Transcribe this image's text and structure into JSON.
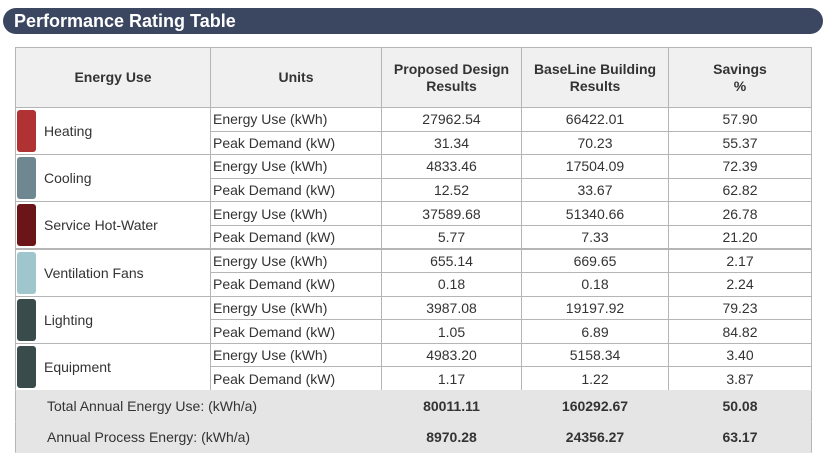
{
  "title": "Performance Rating Table",
  "table": {
    "header": [
      "Energy Use",
      "Units",
      "Proposed Design\nResults",
      "BaseLine Building\nResults",
      "Savings\n%"
    ],
    "groups": [
      {
        "name": "Heating",
        "color": "#b03232",
        "rows": [
          {
            "units": "Energy Use (kWh)",
            "proposed": "27962.54",
            "baseline": "66422.01",
            "savings": "57.90"
          },
          {
            "units": "Peak Demand (kW)",
            "proposed": "31.34",
            "baseline": "70.23",
            "savings": "55.37"
          }
        ]
      },
      {
        "name": "Cooling",
        "color": "#6e8790",
        "rows": [
          {
            "units": "Energy Use (kWh)",
            "proposed": "4833.46",
            "baseline": "17504.09",
            "savings": "72.39"
          },
          {
            "units": "Peak Demand (kW)",
            "proposed": "12.52",
            "baseline": "33.67",
            "savings": "62.82"
          }
        ]
      },
      {
        "name": "Service Hot-Water",
        "color": "#6b1519",
        "rows": [
          {
            "units": "Energy Use (kWh)",
            "proposed": "37589.68",
            "baseline": "51340.66",
            "savings": "26.78"
          },
          {
            "units": "Peak Demand (kW)",
            "proposed": "5.77",
            "baseline": "7.33",
            "savings": "21.20"
          }
        ]
      },
      {
        "name": "Ventilation Fans",
        "color": "#a0c6cd",
        "rows": [
          {
            "units": "Energy Use (kWh)",
            "proposed": "655.14",
            "baseline": "669.65",
            "savings": "2.17"
          },
          {
            "units": "Peak Demand (kW)",
            "proposed": "0.18",
            "baseline": "0.18",
            "savings": "2.24"
          }
        ]
      },
      {
        "name": "Lighting",
        "color": "#394b4b",
        "rows": [
          {
            "units": "Energy Use (kWh)",
            "proposed": "3987.08",
            "baseline": "19197.92",
            "savings": "79.23"
          },
          {
            "units": "Peak Demand (kW)",
            "proposed": "1.05",
            "baseline": "6.89",
            "savings": "84.82"
          }
        ]
      },
      {
        "name": "Equipment",
        "color": "#394b4b",
        "rows": [
          {
            "units": "Energy Use (kWh)",
            "proposed": "4983.20",
            "baseline": "5158.34",
            "savings": "3.40"
          },
          {
            "units": "Peak Demand (kW)",
            "proposed": "1.17",
            "baseline": "1.22",
            "savings": "3.87"
          }
        ]
      }
    ],
    "footer": [
      {
        "label": "Total Annual Energy Use: (kWh/a)",
        "proposed": "80011.11",
        "baseline": "160292.67",
        "savings": "50.08"
      },
      {
        "label": "Annual Process Energy: (kWh/a)",
        "proposed": "8970.28",
        "baseline": "24356.27",
        "savings": "63.17"
      }
    ]
  }
}
